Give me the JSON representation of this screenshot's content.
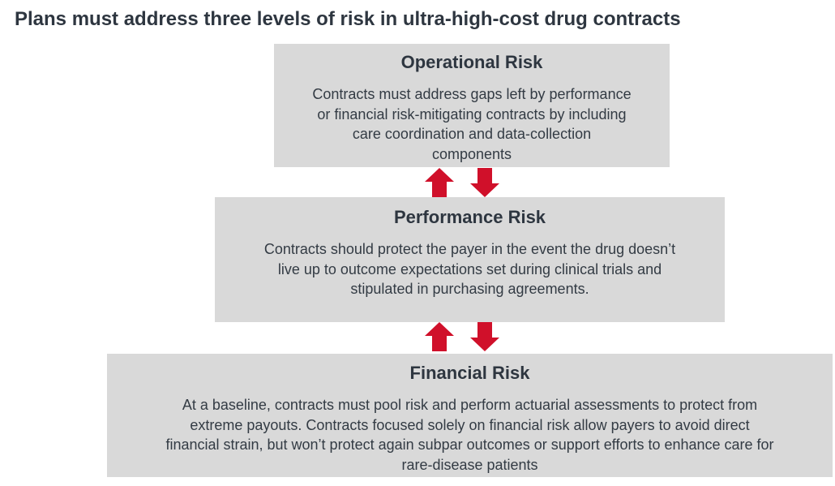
{
  "title": "Plans must address three levels of risk in ultra-high-cost drug contracts",
  "colors": {
    "box_fill": "#d9d9d9",
    "arrow": "#d0102a",
    "text": "#333b44"
  },
  "boxes": [
    {
      "heading": "Operational Risk",
      "lines": [
        "Contracts must address gaps left by performance",
        "or financial risk-mitigating contracts by including",
        "care coordination and data-collection",
        "components"
      ]
    },
    {
      "heading": "Performance Risk",
      "lines": [
        "Contracts should protect the payer in the event the drug doesn’t",
        "live up to outcome expectations set during clinical trials and",
        "stipulated in purchasing agreements."
      ]
    },
    {
      "heading": "Financial Risk",
      "lines": [
        "At a baseline, contracts must pool risk and perform actuarial assessments to protect from",
        "extreme payouts. Contracts focused solely on financial risk allow payers to avoid direct",
        "financial strain, but won’t protect again subpar outcomes or support efforts to enhance care for",
        "rare-disease patients"
      ]
    }
  ],
  "connectors": [
    {
      "between": [
        "Operational Risk",
        "Performance Risk"
      ],
      "icons": [
        "arrow-up-icon",
        "arrow-down-icon"
      ]
    },
    {
      "between": [
        "Performance Risk",
        "Financial Risk"
      ],
      "icons": [
        "arrow-up-icon",
        "arrow-down-icon"
      ]
    }
  ]
}
